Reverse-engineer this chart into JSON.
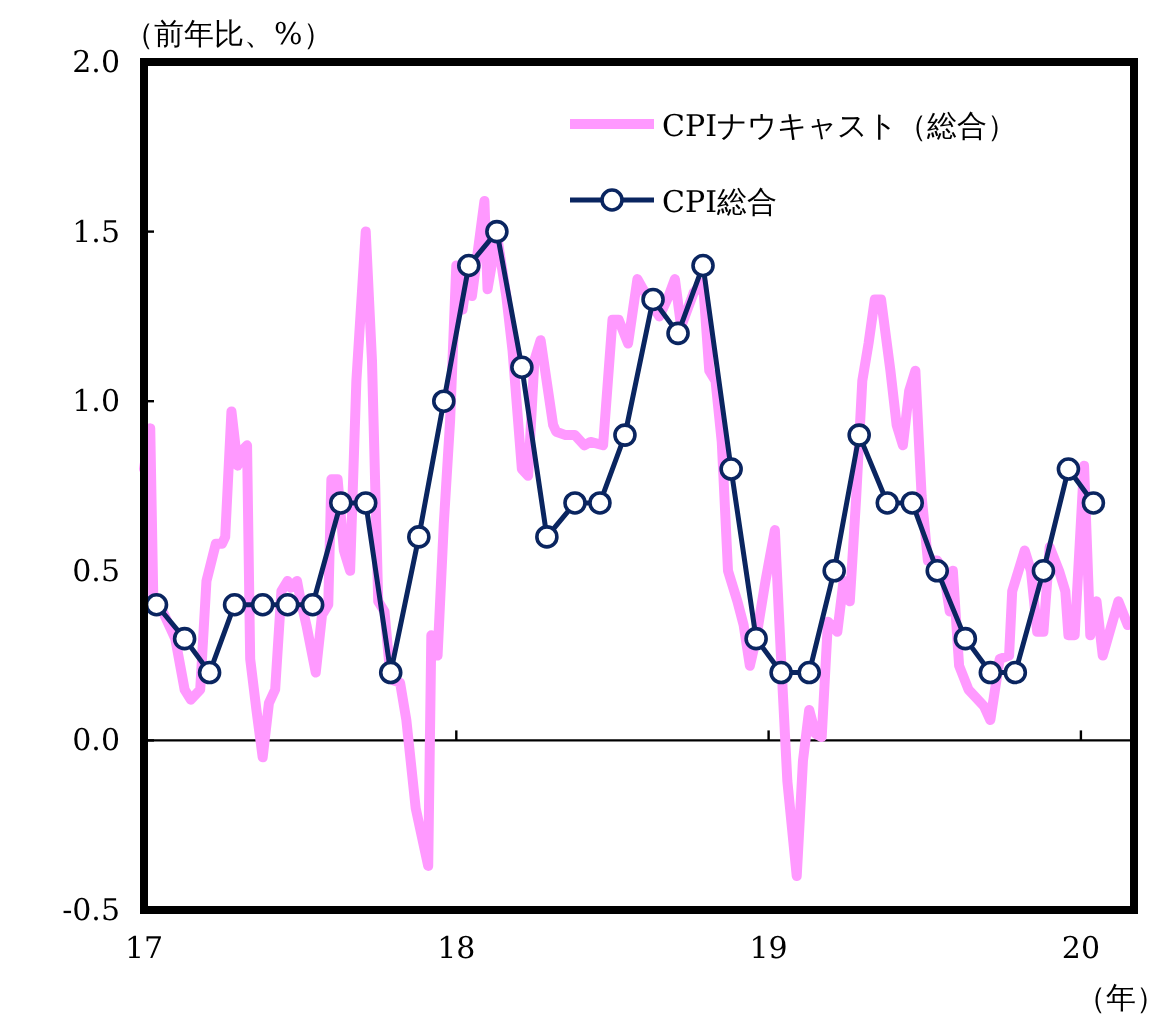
{
  "chart_data": {
    "type": "line",
    "ylabel": "（前年比、%）",
    "xlabel": "（年）",
    "xlim": [
      17,
      20.17
    ],
    "xticks": [
      17,
      18,
      19,
      20
    ],
    "ylim": [
      -0.5,
      2.0
    ],
    "yticks": [
      {
        "value": 2.0,
        "label": "2.0"
      },
      {
        "value": 1.5,
        "label": "1.5"
      },
      {
        "value": 1.0,
        "label": "1.0"
      },
      {
        "value": 0.5,
        "label": "0.5"
      },
      {
        "value": 0.0,
        "label": "0.0"
      },
      {
        "value": -0.5,
        "label": "-0.5"
      }
    ],
    "grid": false,
    "legend": "top right",
    "ref_lines": [
      {
        "axis": "y",
        "value": 0,
        "color": "#000000"
      }
    ],
    "series": [
      {
        "name": "CPIナウキャスト（総合）",
        "color": "#ff99ff",
        "marker": "none",
        "x": [
          17.0,
          17.02,
          17.03,
          17.06,
          17.1,
          17.13,
          17.15,
          17.18,
          17.2,
          17.23,
          17.25,
          17.26,
          17.28,
          17.3,
          17.32,
          17.33,
          17.34,
          17.36,
          17.38,
          17.4,
          17.42,
          17.44,
          17.46,
          17.47,
          17.49,
          17.5,
          17.52,
          17.55,
          17.57,
          17.59,
          17.6,
          17.62,
          17.64,
          17.66,
          17.68,
          17.71,
          17.73,
          17.75,
          17.77,
          17.79,
          17.82,
          17.84,
          17.87,
          17.91,
          17.92,
          17.94,
          17.96,
          17.98,
          18.0,
          18.02,
          18.04,
          18.05,
          18.07,
          18.09,
          18.1,
          18.13,
          18.16,
          18.18,
          18.21,
          18.23,
          18.25,
          18.27,
          18.31,
          18.32,
          18.35,
          18.38,
          18.41,
          18.43,
          18.47,
          18.5,
          18.52,
          18.55,
          18.58,
          18.61,
          18.65,
          18.68,
          18.7,
          18.72,
          18.74,
          18.76,
          18.79,
          18.81,
          18.83,
          18.85,
          18.87,
          18.9,
          18.92,
          18.94,
          18.96,
          18.99,
          19.02,
          19.04,
          19.06,
          19.09,
          19.11,
          19.13,
          19.15,
          19.17,
          19.19,
          19.22,
          19.24,
          19.26,
          19.28,
          19.3,
          19.32,
          19.34,
          19.36,
          19.39,
          19.41,
          19.43,
          19.45,
          19.47,
          19.49,
          19.51,
          19.54,
          19.56,
          19.58,
          19.59,
          19.61,
          19.64,
          19.67,
          19.69,
          19.71,
          19.74,
          19.77,
          19.78,
          19.82,
          19.84,
          19.86,
          19.88,
          19.9,
          19.93,
          19.95,
          19.96,
          19.98,
          20.01,
          20.03,
          20.05,
          20.07,
          20.12,
          20.15
        ],
        "values": [
          0.8,
          0.92,
          0.41,
          0.38,
          0.3,
          0.15,
          0.12,
          0.15,
          0.47,
          0.58,
          0.58,
          0.6,
          0.97,
          0.81,
          0.86,
          0.87,
          0.24,
          0.09,
          -0.05,
          0.11,
          0.15,
          0.44,
          0.47,
          0.45,
          0.47,
          0.42,
          0.34,
          0.2,
          0.37,
          0.4,
          0.77,
          0.77,
          0.56,
          0.5,
          1.06,
          1.5,
          1.12,
          0.41,
          0.38,
          0.18,
          0.17,
          0.06,
          -0.2,
          -0.37,
          0.31,
          0.25,
          0.64,
          0.94,
          1.4,
          1.27,
          1.4,
          1.31,
          1.45,
          1.59,
          1.33,
          1.49,
          1.31,
          1.15,
          0.8,
          0.78,
          1.12,
          1.18,
          0.93,
          0.91,
          0.9,
          0.9,
          0.87,
          0.88,
          0.87,
          1.24,
          1.24,
          1.17,
          1.36,
          1.31,
          1.25,
          1.31,
          1.36,
          1.22,
          1.27,
          1.32,
          1.35,
          1.09,
          1.06,
          0.88,
          0.5,
          0.41,
          0.34,
          0.22,
          0.3,
          0.47,
          0.62,
          0.24,
          -0.12,
          -0.4,
          -0.06,
          0.09,
          0.02,
          0.01,
          0.35,
          0.32,
          0.47,
          0.41,
          0.71,
          1.06,
          1.17,
          1.3,
          1.3,
          1.09,
          0.93,
          0.87,
          1.03,
          1.09,
          0.72,
          0.53,
          0.53,
          0.5,
          0.38,
          0.5,
          0.22,
          0.15,
          0.12,
          0.1,
          0.06,
          0.24,
          0.25,
          0.44,
          0.56,
          0.5,
          0.32,
          0.32,
          0.57,
          0.5,
          0.44,
          0.31,
          0.31,
          0.81,
          0.31,
          0.41,
          0.25,
          0.41,
          0.34
        ]
      },
      {
        "name": "CPI総合",
        "color": "#0a2560",
        "marker": "circle",
        "x": [
          17.04,
          17.13,
          17.21,
          17.29,
          17.38,
          17.46,
          17.54,
          17.63,
          17.71,
          17.79,
          17.88,
          17.96,
          18.04,
          18.13,
          18.21,
          18.29,
          18.38,
          18.46,
          18.54,
          18.63,
          18.71,
          18.79,
          18.88,
          18.96,
          19.04,
          19.13,
          19.21,
          19.29,
          19.38,
          19.46,
          19.54,
          19.63,
          19.71,
          19.79,
          19.88,
          19.96,
          20.04
        ],
        "values": [
          0.4,
          0.3,
          0.2,
          0.4,
          0.4,
          0.4,
          0.4,
          0.7,
          0.7,
          0.2,
          0.6,
          1.0,
          1.4,
          1.5,
          1.1,
          0.6,
          0.7,
          0.7,
          0.9,
          1.3,
          1.2,
          1.4,
          0.8,
          0.3,
          0.2,
          0.2,
          0.5,
          0.9,
          0.7,
          0.7,
          0.5,
          0.3,
          0.2,
          0.2,
          0.5,
          0.8,
          0.7
        ]
      }
    ]
  }
}
